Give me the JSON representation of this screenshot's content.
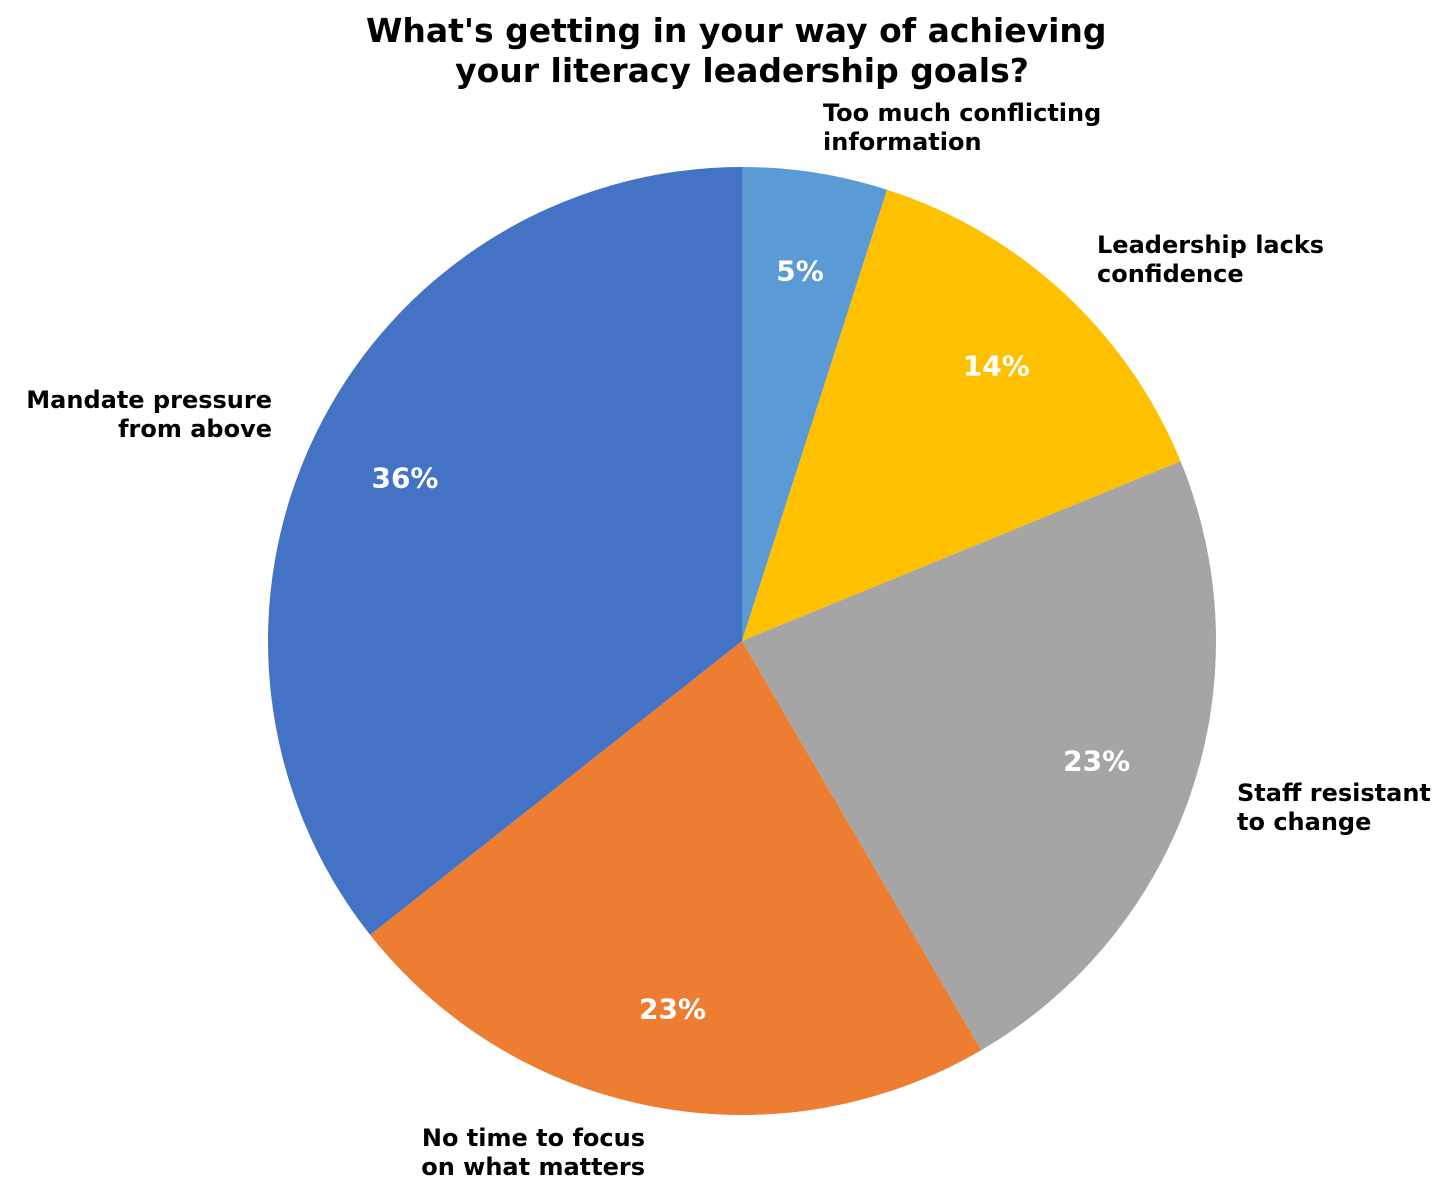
{
  "chart_data": {
    "type": "pie",
    "title": [
      "What's getting in your way of achieving",
      "your literacy leadership goals?"
    ],
    "slices": [
      {
        "label": [
          "Too much conflicting",
          "information"
        ],
        "value": 5,
        "pct_label": "5%",
        "color": "#5b9bd5"
      },
      {
        "label": [
          "Leadership lacks",
          "confidence"
        ],
        "value": 14,
        "pct_label": "14%",
        "color": "#ffc000"
      },
      {
        "label": [
          "Staff resistant",
          "to change"
        ],
        "value": 23,
        "pct_label": "23%",
        "color": "#a5a5a5"
      },
      {
        "label": [
          "No time to focus",
          "on what matters"
        ],
        "value": 23,
        "pct_label": "23%",
        "color": "#ed7d31"
      },
      {
        "label": [
          "Mandate pressure",
          "from above"
        ],
        "value": 36,
        "pct_label": "36%",
        "color": "#4472c4"
      }
    ],
    "start_angle": "top, clockwise",
    "legend": "none"
  }
}
